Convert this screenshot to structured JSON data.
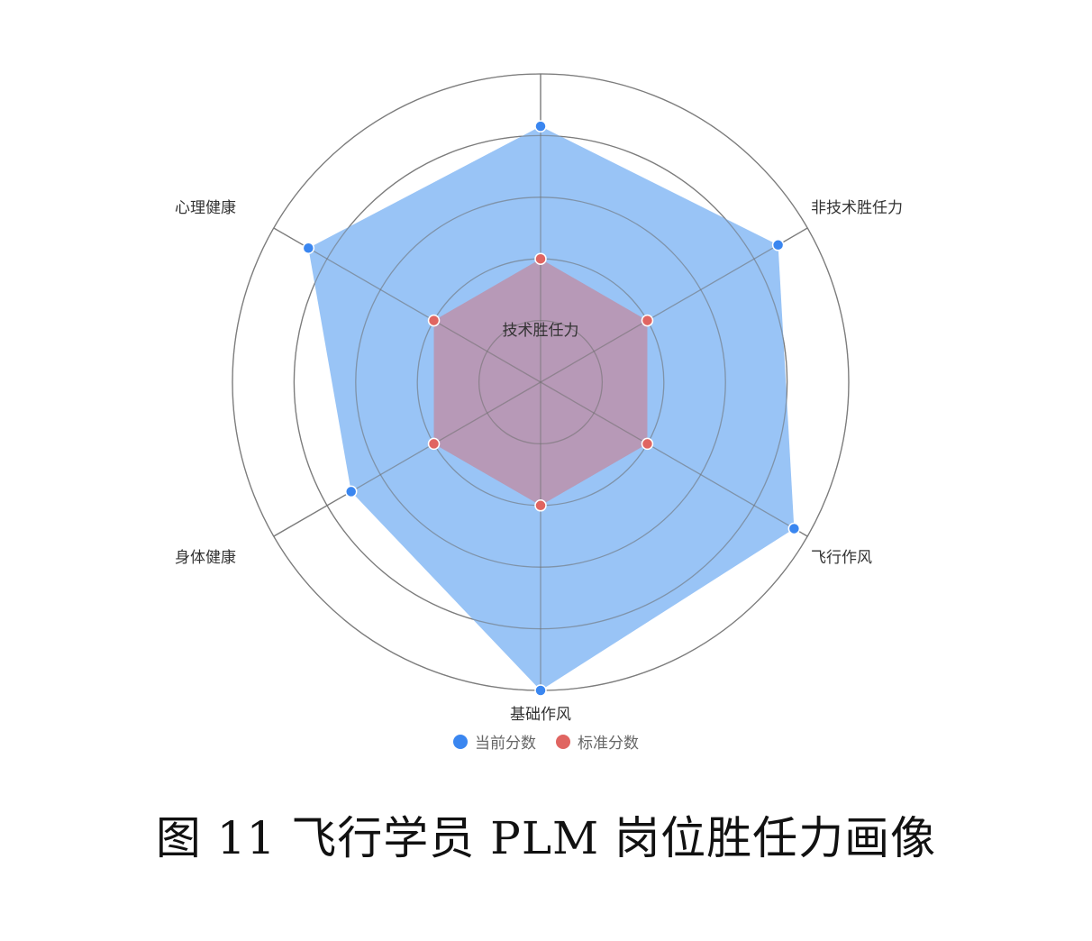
{
  "chart_data": {
    "type": "radar",
    "axes": [
      "技术胜任力",
      "非技术胜任力",
      "飞行作风",
      "基础作风",
      "身体健康",
      "心理健康"
    ],
    "rmax": 100,
    "rings": 5,
    "series": [
      {
        "name": "当前分数",
        "values": [
          83,
          89,
          95,
          100,
          71,
          87
        ],
        "color": "#3a86f0",
        "fill": "#94c1f6"
      },
      {
        "name": "标准分数",
        "values": [
          40,
          40,
          40,
          40,
          40,
          40
        ],
        "color": "#e06561",
        "fill": "#b897b3"
      }
    ],
    "legend_position": "bottom-center"
  },
  "caption": "图 11  飞行学员 PLM 岗位胜任力画像"
}
